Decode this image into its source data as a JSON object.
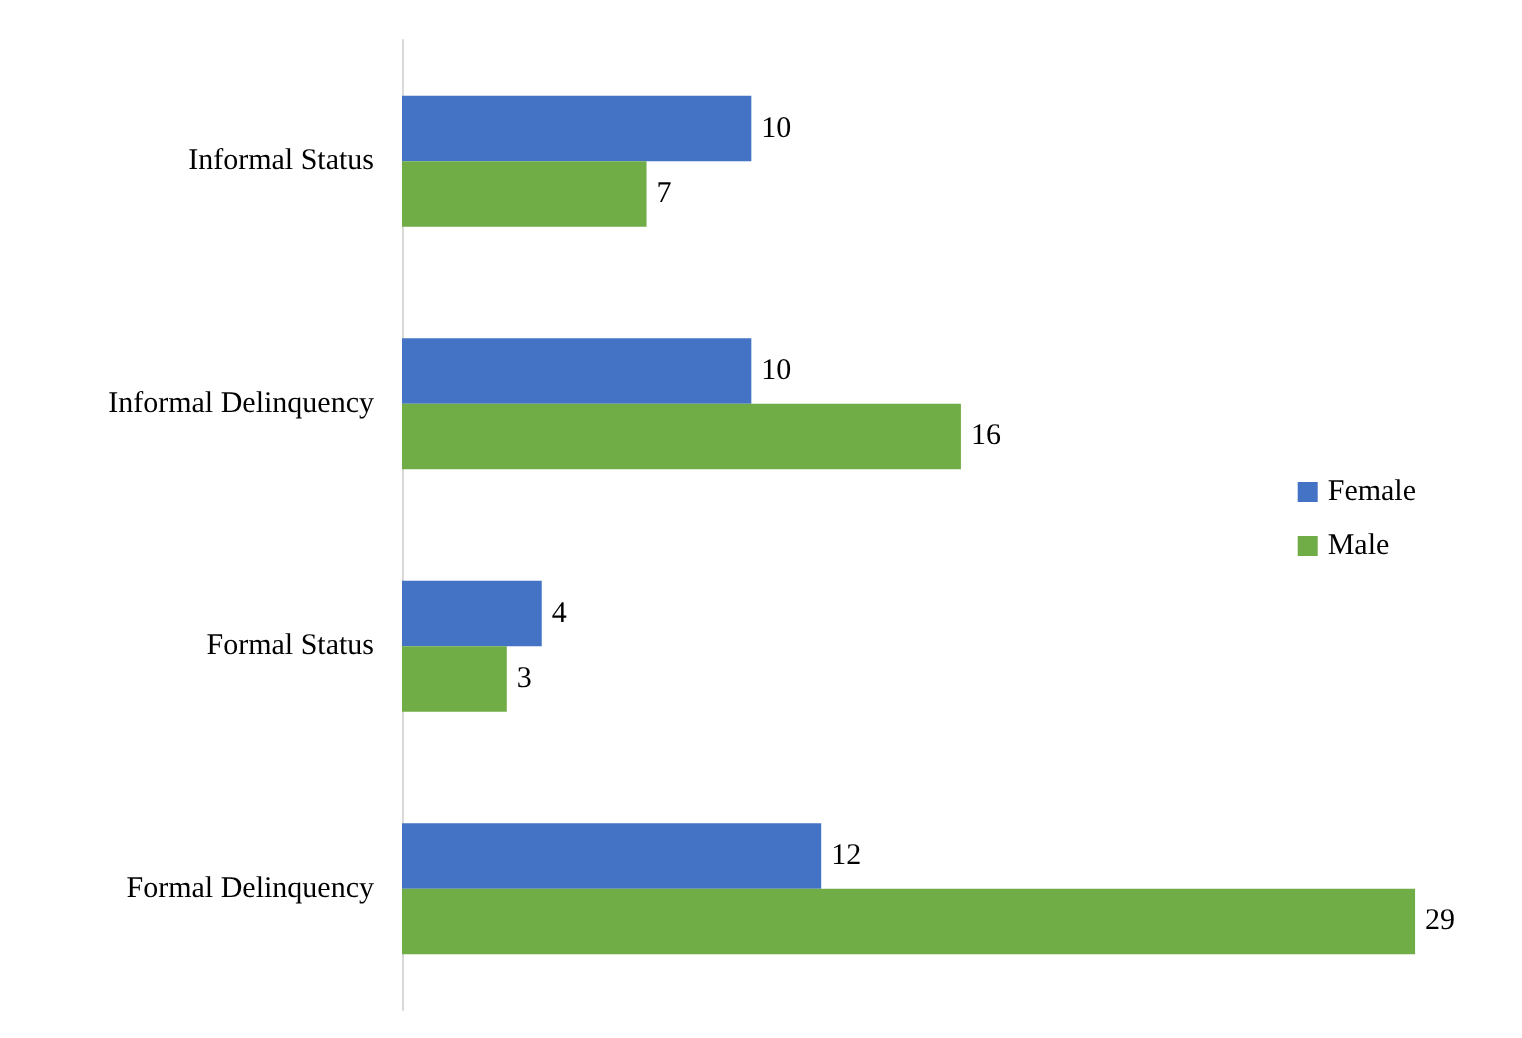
{
  "chart_data": {
    "type": "bar",
    "orientation": "horizontal",
    "categories": [
      "Informal Status",
      "Informal Delinquency",
      "Formal Status",
      "Formal Delinquency"
    ],
    "series": [
      {
        "name": "Female",
        "color": "#4472c4",
        "values": [
          10,
          10,
          4,
          12
        ]
      },
      {
        "name": "Male",
        "color": "#70ad47",
        "values": [
          7,
          16,
          3,
          29
        ]
      }
    ],
    "data_labels": true,
    "legend": "right",
    "grid": false
  }
}
